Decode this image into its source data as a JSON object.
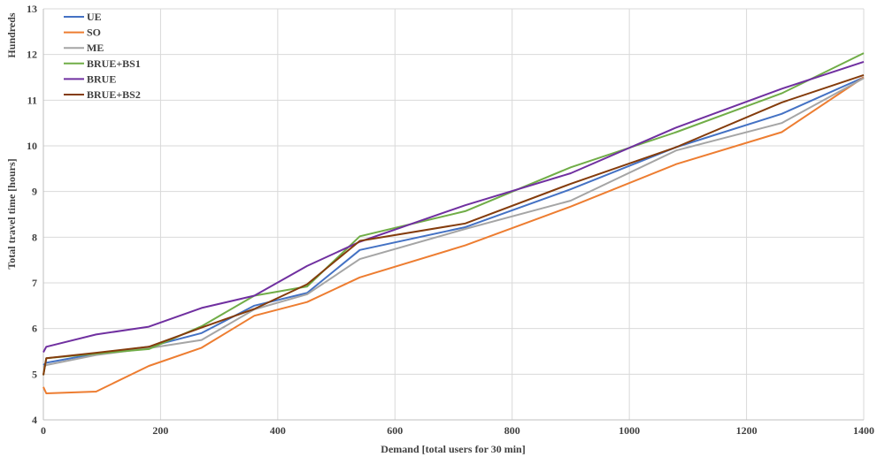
{
  "chart_data": {
    "type": "line",
    "title": "",
    "xlabel": "Demand [total users for 30 min]",
    "ylabel": "Total travel time [hours]",
    "y_unit_label": "Hundreds",
    "xlim": [
      0,
      1400
    ],
    "ylim": [
      4,
      13
    ],
    "x_ticks": [
      0,
      200,
      400,
      600,
      800,
      1000,
      1200,
      1400
    ],
    "y_ticks": [
      4,
      5,
      6,
      7,
      8,
      9,
      10,
      11,
      12,
      13
    ],
    "grid": true,
    "legend_position": "top-left",
    "series": [
      {
        "name": "UE",
        "color": "#4472C4",
        "x": [
          0,
          5,
          90,
          180,
          270,
          360,
          450,
          540,
          720,
          900,
          1080,
          1260,
          1400
        ],
        "y": [
          5.2,
          5.25,
          5.45,
          5.6,
          5.9,
          6.5,
          6.78,
          7.72,
          8.22,
          9.05,
          9.97,
          10.7,
          11.5
        ]
      },
      {
        "name": "SO",
        "color": "#ED7D31",
        "x": [
          0,
          5,
          90,
          180,
          270,
          360,
          450,
          540,
          720,
          900,
          1080,
          1260,
          1400
        ],
        "y": [
          4.72,
          4.58,
          4.62,
          5.18,
          5.58,
          6.28,
          6.58,
          7.12,
          7.82,
          8.67,
          9.6,
          10.3,
          11.5
        ]
      },
      {
        "name": "ME",
        "color": "#A5A5A5",
        "x": [
          0,
          5,
          90,
          180,
          270,
          360,
          450,
          540,
          720,
          900,
          1080,
          1260,
          1400
        ],
        "y": [
          5.15,
          5.2,
          5.42,
          5.57,
          5.75,
          6.42,
          6.75,
          7.52,
          8.18,
          8.8,
          9.9,
          10.5,
          11.48
        ]
      },
      {
        "name": "BRUE+BS1",
        "color": "#70AD47",
        "x": [
          0,
          5,
          90,
          180,
          270,
          360,
          450,
          540,
          720,
          900,
          1080,
          1260,
          1400
        ],
        "y": [
          4.98,
          5.35,
          5.45,
          5.55,
          6.05,
          6.72,
          6.92,
          8.02,
          8.57,
          9.53,
          10.3,
          11.15,
          12.03
        ]
      },
      {
        "name": "BRUE",
        "color": "#7030A0",
        "x": [
          0,
          5,
          90,
          180,
          270,
          360,
          450,
          540,
          720,
          900,
          1080,
          1260,
          1400
        ],
        "y": [
          5.48,
          5.6,
          5.87,
          6.04,
          6.45,
          6.72,
          7.37,
          7.9,
          8.7,
          9.4,
          10.4,
          11.25,
          11.84
        ]
      },
      {
        "name": "BRUE+BS2",
        "color": "#843C0C",
        "x": [
          0,
          5,
          90,
          180,
          270,
          360,
          450,
          540,
          720,
          900,
          1080,
          1260,
          1400
        ],
        "y": [
          4.98,
          5.35,
          5.47,
          5.6,
          6.02,
          6.43,
          6.97,
          7.92,
          8.3,
          9.17,
          9.97,
          10.95,
          11.55
        ]
      }
    ]
  }
}
